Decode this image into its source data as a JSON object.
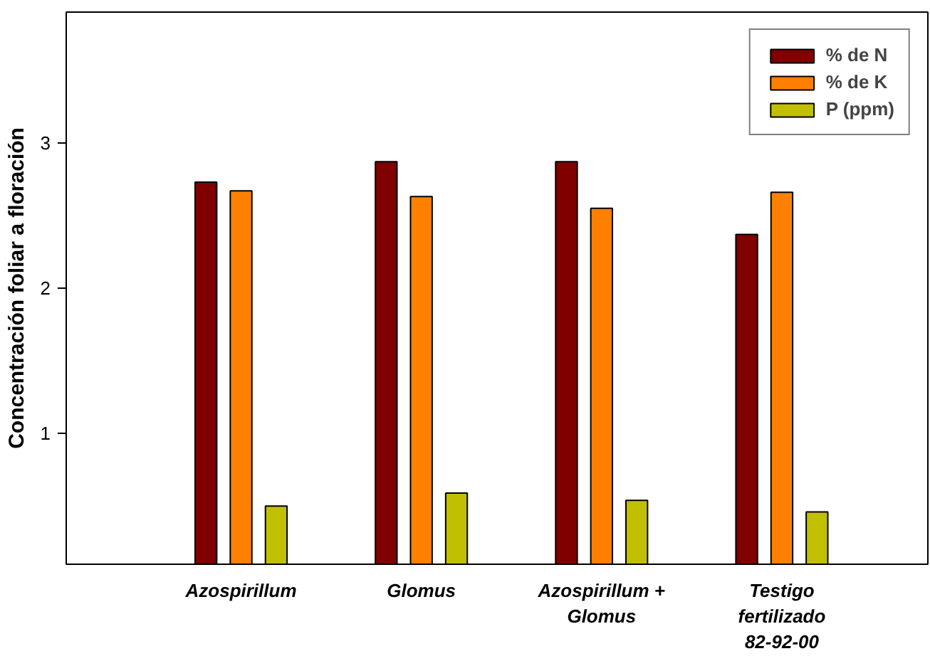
{
  "chart_data": {
    "type": "bar",
    "ylabel": "Concentración foliar a floración",
    "categories": [
      "Azospirillum",
      "Glomus",
      "Azospirillum +\nGlomus",
      "Testigo\nfertilizado\n82-92-00"
    ],
    "series": [
      {
        "name": "% de N",
        "color": "#800000",
        "values": [
          2.73,
          2.87,
          2.87,
          2.37
        ]
      },
      {
        "name": "% de K",
        "color": "#ff8000",
        "values": [
          2.67,
          2.63,
          2.55,
          2.66
        ]
      },
      {
        "name": "P (ppm)",
        "color": "#c0c000",
        "values": [
          0.5,
          0.59,
          0.54,
          0.46
        ]
      }
    ],
    "ylim": [
      0.1,
      3.9
    ],
    "yticks": [
      1,
      2,
      3
    ],
    "grid": false,
    "legend": "top right"
  }
}
